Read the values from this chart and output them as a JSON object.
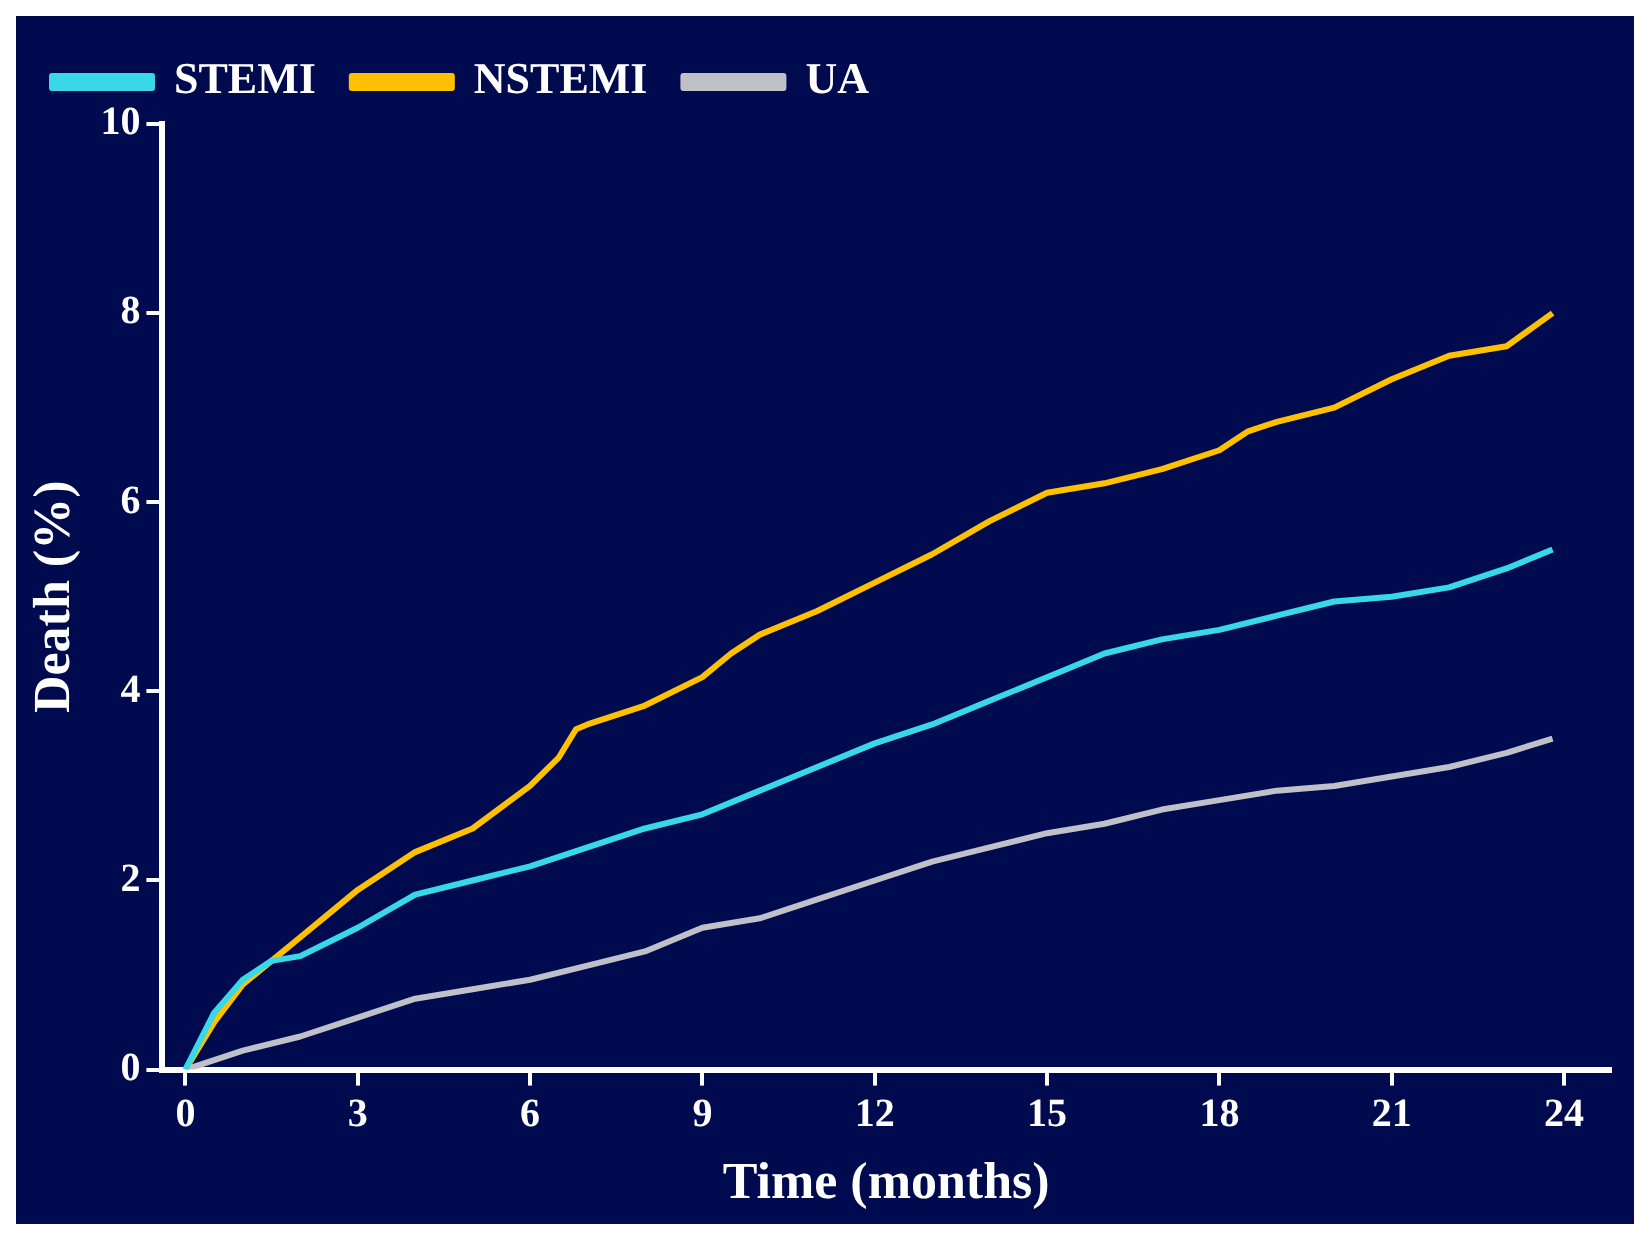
{
  "chart_data": {
    "type": "line",
    "xlabel": "Time (months)",
    "ylabel": "Death (%)",
    "xlim": [
      -0.4,
      24.8
    ],
    "ylim": [
      0,
      10
    ],
    "xticks": [
      0,
      3,
      6,
      9,
      12,
      15,
      18,
      21,
      24
    ],
    "yticks": [
      0,
      2,
      4,
      6,
      8,
      10
    ],
    "grid": false,
    "legend": "top left",
    "marker": "none",
    "line_style": "solid",
    "series": [
      {
        "name": "STEMI",
        "color": "#38d8e8",
        "x": [
          0,
          0.5,
          1,
          1.5,
          2,
          3,
          4,
          5,
          6,
          7,
          8,
          9,
          10,
          11,
          12,
          13,
          14,
          15,
          16,
          17,
          18,
          19,
          20,
          21,
          22,
          23,
          23.8
        ],
        "values": [
          0,
          0.6,
          0.95,
          1.15,
          1.2,
          1.5,
          1.85,
          2.0,
          2.15,
          2.35,
          2.55,
          2.7,
          2.95,
          3.2,
          3.45,
          3.65,
          3.9,
          4.15,
          4.4,
          4.55,
          4.65,
          4.8,
          4.95,
          5.0,
          5.1,
          5.3,
          5.5
        ]
      },
      {
        "name": "NSTEMI",
        "color": "#ffc000",
        "x": [
          0,
          0.5,
          1,
          1.5,
          2,
          2.5,
          3,
          4,
          5,
          6,
          6.5,
          6.8,
          7,
          8,
          9,
          9.5,
          10,
          11,
          12,
          13,
          14,
          15,
          16,
          17,
          18,
          18.5,
          19,
          20,
          21,
          22,
          23,
          23.8
        ],
        "values": [
          0,
          0.5,
          0.9,
          1.15,
          1.4,
          1.65,
          1.9,
          2.3,
          2.55,
          3.0,
          3.3,
          3.6,
          3.65,
          3.85,
          4.15,
          4.4,
          4.6,
          4.85,
          5.15,
          5.45,
          5.8,
          6.1,
          6.2,
          6.35,
          6.55,
          6.75,
          6.85,
          7.0,
          7.3,
          7.55,
          7.65,
          8.0
        ]
      },
      {
        "name": "UA",
        "color": "#c0c0c8",
        "x": [
          0,
          1,
          2,
          3,
          4,
          5,
          6,
          7,
          8,
          9,
          10,
          11,
          12,
          13,
          14,
          15,
          16,
          17,
          18,
          19,
          20,
          21,
          22,
          23,
          23.8
        ],
        "values": [
          0,
          0.2,
          0.35,
          0.55,
          0.75,
          0.85,
          0.95,
          1.1,
          1.25,
          1.5,
          1.6,
          1.8,
          2.0,
          2.2,
          2.35,
          2.5,
          2.6,
          2.75,
          2.85,
          2.95,
          3.0,
          3.1,
          3.2,
          3.35,
          3.5
        ]
      }
    ]
  }
}
